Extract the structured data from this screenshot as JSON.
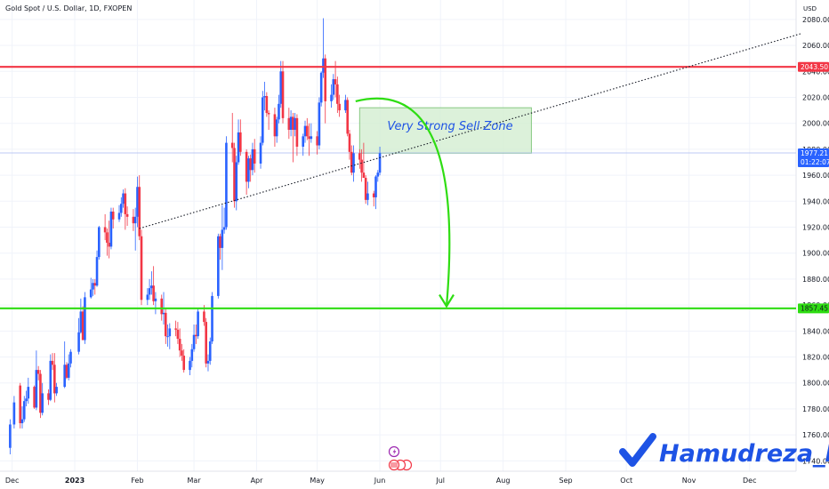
{
  "header": {
    "title": "Gold Spot / U.S. Dollar, 1D, FXOPEN",
    "currency": "USD"
  },
  "annotations": {
    "sell_zone_label": "Very Strong Sell Zone",
    "watermark": "Hamudreza_FX",
    "current_time_remaining": "01:22:07"
  },
  "colors": {
    "bull": "#2962ff",
    "bear": "#f23645",
    "resistance": "#f23645",
    "support": "#2edd12",
    "zone_fill": "#d6efd4",
    "zone_border": "#74c06e",
    "arrow": "#2edd12",
    "brand": "#1e53e5"
  },
  "chart_data": {
    "type": "candlestick",
    "symbol": "Gold Spot / U.S. Dollar",
    "interval": "1D",
    "y_axis": {
      "unit": "USD",
      "range": [
        1732,
        2095
      ],
      "ticks": [
        "2080.00",
        "2060.00",
        "2040.00",
        "2020.00",
        "2000.00",
        "1980.00",
        "1960.00",
        "1940.00",
        "1920.00",
        "1900.00",
        "1880.00",
        "1860.00",
        "1840.00",
        "1820.00",
        "1800.00",
        "1780.00",
        "1760.00",
        "1740.00"
      ]
    },
    "x_axis": {
      "ticks": [
        "Dec",
        "2023",
        "Feb",
        "Mar",
        "Apr",
        "May",
        "Jun",
        "Jul",
        "Aug",
        "Sep",
        "Oct",
        "Nov",
        "Dec"
      ]
    },
    "levels": [
      {
        "name": "resistance",
        "value": 2043.5,
        "label": "2043.50"
      },
      {
        "name": "support",
        "value": 1857.45,
        "label": "1857.45"
      },
      {
        "name": "last-price",
        "value": 1977.21,
        "label": "1977.21"
      }
    ],
    "sell_zone": {
      "low": 1977,
      "high": 2012,
      "start": "2023-05-22",
      "end": "2023-08-15"
    },
    "trendline": {
      "from": {
        "date": "2023-02-02",
        "price": 1919
      },
      "to": {
        "date": "2023-12-21",
        "price": 2069
      }
    },
    "projection": {
      "from": {
        "date": "2023-05-20",
        "price": 2017
      },
      "to": {
        "date": "2023-07-04",
        "price": 1857
      }
    },
    "candles": [
      {
        "d": "2022-11-30",
        "o": 1750,
        "h": 1772,
        "l": 1745,
        "c": 1768
      },
      {
        "d": "2022-12-02",
        "o": 1768,
        "h": 1790,
        "l": 1765,
        "c": 1785
      },
      {
        "d": "2022-12-05",
        "o": 1798,
        "h": 1800,
        "l": 1765,
        "c": 1769
      },
      {
        "d": "2022-12-06",
        "o": 1769,
        "h": 1782,
        "l": 1765,
        "c": 1772
      },
      {
        "d": "2022-12-07",
        "o": 1772,
        "h": 1790,
        "l": 1770,
        "c": 1786
      },
      {
        "d": "2022-12-08",
        "o": 1786,
        "h": 1794,
        "l": 1782,
        "c": 1788
      },
      {
        "d": "2022-12-09",
        "o": 1788,
        "h": 1804,
        "l": 1784,
        "c": 1797
      },
      {
        "d": "2022-12-12",
        "o": 1797,
        "h": 1798,
        "l": 1780,
        "c": 1781
      },
      {
        "d": "2022-12-13",
        "o": 1781,
        "h": 1825,
        "l": 1779,
        "c": 1810
      },
      {
        "d": "2022-12-14",
        "o": 1810,
        "h": 1813,
        "l": 1802,
        "c": 1807
      },
      {
        "d": "2022-12-15",
        "o": 1807,
        "h": 1810,
        "l": 1773,
        "c": 1777
      },
      {
        "d": "2022-12-16",
        "o": 1777,
        "h": 1800,
        "l": 1775,
        "c": 1792
      },
      {
        "d": "2022-12-19",
        "o": 1792,
        "h": 1795,
        "l": 1783,
        "c": 1787
      },
      {
        "d": "2022-12-20",
        "o": 1787,
        "h": 1822,
        "l": 1786,
        "c": 1817
      },
      {
        "d": "2022-12-21",
        "o": 1817,
        "h": 1823,
        "l": 1810,
        "c": 1814
      },
      {
        "d": "2022-12-22",
        "o": 1814,
        "h": 1823,
        "l": 1785,
        "c": 1792
      },
      {
        "d": "2022-12-23",
        "o": 1792,
        "h": 1800,
        "l": 1790,
        "c": 1797
      },
      {
        "d": "2022-12-27",
        "o": 1797,
        "h": 1832,
        "l": 1796,
        "c": 1814
      },
      {
        "d": "2022-12-28",
        "o": 1814,
        "h": 1816,
        "l": 1803,
        "c": 1804
      },
      {
        "d": "2022-12-29",
        "o": 1804,
        "h": 1822,
        "l": 1802,
        "c": 1815
      },
      {
        "d": "2022-12-30",
        "o": 1815,
        "h": 1826,
        "l": 1812,
        "c": 1824
      },
      {
        "d": "2023-01-03",
        "o": 1824,
        "h": 1850,
        "l": 1822,
        "c": 1839
      },
      {
        "d": "2023-01-04",
        "o": 1839,
        "h": 1865,
        "l": 1838,
        "c": 1855
      },
      {
        "d": "2023-01-05",
        "o": 1855,
        "h": 1859,
        "l": 1833,
        "c": 1833
      },
      {
        "d": "2023-01-06",
        "o": 1833,
        "h": 1870,
        "l": 1830,
        "c": 1866
      },
      {
        "d": "2023-01-09",
        "o": 1866,
        "h": 1881,
        "l": 1865,
        "c": 1872
      },
      {
        "d": "2023-01-10",
        "o": 1872,
        "h": 1880,
        "l": 1867,
        "c": 1877
      },
      {
        "d": "2023-01-11",
        "o": 1877,
        "h": 1880,
        "l": 1868,
        "c": 1875
      },
      {
        "d": "2023-01-12",
        "o": 1875,
        "h": 1902,
        "l": 1874,
        "c": 1897
      },
      {
        "d": "2023-01-13",
        "o": 1897,
        "h": 1921,
        "l": 1895,
        "c": 1920
      },
      {
        "d": "2023-01-16",
        "o": 1920,
        "h": 1930,
        "l": 1910,
        "c": 1916
      },
      {
        "d": "2023-01-17",
        "o": 1916,
        "h": 1919,
        "l": 1898,
        "c": 1908
      },
      {
        "d": "2023-01-18",
        "o": 1908,
        "h": 1925,
        "l": 1896,
        "c": 1905
      },
      {
        "d": "2023-01-19",
        "o": 1905,
        "h": 1935,
        "l": 1903,
        "c": 1932
      },
      {
        "d": "2023-01-20",
        "o": 1932,
        "h": 1935,
        "l": 1919,
        "c": 1926
      },
      {
        "d": "2023-01-23",
        "o": 1926,
        "h": 1937,
        "l": 1924,
        "c": 1931
      },
      {
        "d": "2023-01-24",
        "o": 1931,
        "h": 1943,
        "l": 1928,
        "c": 1938
      },
      {
        "d": "2023-01-25",
        "o": 1938,
        "h": 1949,
        "l": 1935,
        "c": 1946
      },
      {
        "d": "2023-01-26",
        "o": 1946,
        "h": 1950,
        "l": 1918,
        "c": 1930
      },
      {
        "d": "2023-01-27",
        "o": 1930,
        "h": 1936,
        "l": 1921,
        "c": 1928
      },
      {
        "d": "2023-01-30",
        "o": 1928,
        "h": 1934,
        "l": 1917,
        "c": 1923
      },
      {
        "d": "2023-01-31",
        "o": 1923,
        "h": 1935,
        "l": 1902,
        "c": 1928
      },
      {
        "d": "2023-02-01",
        "o": 1928,
        "h": 1959,
        "l": 1920,
        "c": 1951
      },
      {
        "d": "2023-02-02",
        "o": 1951,
        "h": 1960,
        "l": 1910,
        "c": 1913
      },
      {
        "d": "2023-02-03",
        "o": 1913,
        "h": 1918,
        "l": 1860,
        "c": 1864
      },
      {
        "d": "2023-02-06",
        "o": 1864,
        "h": 1873,
        "l": 1860,
        "c": 1868
      },
      {
        "d": "2023-02-07",
        "o": 1868,
        "h": 1880,
        "l": 1864,
        "c": 1873
      },
      {
        "d": "2023-02-08",
        "o": 1873,
        "h": 1886,
        "l": 1868,
        "c": 1875
      },
      {
        "d": "2023-02-09",
        "o": 1875,
        "h": 1890,
        "l": 1860,
        "c": 1863
      },
      {
        "d": "2023-02-10",
        "o": 1863,
        "h": 1870,
        "l": 1853,
        "c": 1865
      },
      {
        "d": "2023-02-13",
        "o": 1865,
        "h": 1868,
        "l": 1848,
        "c": 1853
      },
      {
        "d": "2023-02-14",
        "o": 1853,
        "h": 1870,
        "l": 1845,
        "c": 1854
      },
      {
        "d": "2023-02-15",
        "o": 1854,
        "h": 1858,
        "l": 1830,
        "c": 1836
      },
      {
        "d": "2023-02-16",
        "o": 1836,
        "h": 1845,
        "l": 1828,
        "c": 1836
      },
      {
        "d": "2023-02-17",
        "o": 1836,
        "h": 1846,
        "l": 1826,
        "c": 1842
      },
      {
        "d": "2023-02-20",
        "o": 1842,
        "h": 1848,
        "l": 1836,
        "c": 1841
      },
      {
        "d": "2023-02-21",
        "o": 1841,
        "h": 1847,
        "l": 1830,
        "c": 1834
      },
      {
        "d": "2023-02-22",
        "o": 1834,
        "h": 1842,
        "l": 1820,
        "c": 1825
      },
      {
        "d": "2023-02-23",
        "o": 1825,
        "h": 1830,
        "l": 1817,
        "c": 1821
      },
      {
        "d": "2023-02-24",
        "o": 1821,
        "h": 1826,
        "l": 1808,
        "c": 1810
      },
      {
        "d": "2023-02-27",
        "o": 1810,
        "h": 1820,
        "l": 1806,
        "c": 1817
      },
      {
        "d": "2023-02-28",
        "o": 1817,
        "h": 1830,
        "l": 1812,
        "c": 1826
      },
      {
        "d": "2023-03-01",
        "o": 1826,
        "h": 1845,
        "l": 1824,
        "c": 1837
      },
      {
        "d": "2023-03-02",
        "o": 1837,
        "h": 1845,
        "l": 1830,
        "c": 1836
      },
      {
        "d": "2023-03-03",
        "o": 1836,
        "h": 1858,
        "l": 1834,
        "c": 1855
      },
      {
        "d": "2023-03-06",
        "o": 1855,
        "h": 1860,
        "l": 1844,
        "c": 1847
      },
      {
        "d": "2023-03-07",
        "o": 1847,
        "h": 1850,
        "l": 1812,
        "c": 1815
      },
      {
        "d": "2023-03-08",
        "o": 1815,
        "h": 1822,
        "l": 1809,
        "c": 1817
      },
      {
        "d": "2023-03-09",
        "o": 1817,
        "h": 1835,
        "l": 1814,
        "c": 1832
      },
      {
        "d": "2023-03-10",
        "o": 1832,
        "h": 1870,
        "l": 1830,
        "c": 1867
      },
      {
        "d": "2023-03-13",
        "o": 1867,
        "h": 1915,
        "l": 1865,
        "c": 1913
      },
      {
        "d": "2023-03-14",
        "o": 1913,
        "h": 1915,
        "l": 1895,
        "c": 1904
      },
      {
        "d": "2023-03-15",
        "o": 1904,
        "h": 1937,
        "l": 1887,
        "c": 1918
      },
      {
        "d": "2023-03-16",
        "o": 1918,
        "h": 1935,
        "l": 1915,
        "c": 1920
      },
      {
        "d": "2023-03-17",
        "o": 1920,
        "h": 1990,
        "l": 1918,
        "c": 1985
      },
      {
        "d": "2023-03-20",
        "o": 1985,
        "h": 2008,
        "l": 1970,
        "c": 1981
      },
      {
        "d": "2023-03-21",
        "o": 1981,
        "h": 1985,
        "l": 1935,
        "c": 1940
      },
      {
        "d": "2023-03-22",
        "o": 1940,
        "h": 1975,
        "l": 1933,
        "c": 1970
      },
      {
        "d": "2023-03-23",
        "o": 1970,
        "h": 2003,
        "l": 1968,
        "c": 1993
      },
      {
        "d": "2023-03-24",
        "o": 1993,
        "h": 2003,
        "l": 1975,
        "c": 1978
      },
      {
        "d": "2023-03-27",
        "o": 1978,
        "h": 1980,
        "l": 1945,
        "c": 1955
      },
      {
        "d": "2023-03-28",
        "o": 1955,
        "h": 1975,
        "l": 1950,
        "c": 1973
      },
      {
        "d": "2023-03-29",
        "o": 1973,
        "h": 1976,
        "l": 1955,
        "c": 1964
      },
      {
        "d": "2023-03-30",
        "o": 1964,
        "h": 1985,
        "l": 1960,
        "c": 1980
      },
      {
        "d": "2023-03-31",
        "o": 1980,
        "h": 1988,
        "l": 1962,
        "c": 1969
      },
      {
        "d": "2023-04-03",
        "o": 1969,
        "h": 1990,
        "l": 1965,
        "c": 1985
      },
      {
        "d": "2023-04-04",
        "o": 1985,
        "h": 2025,
        "l": 1983,
        "c": 2020
      },
      {
        "d": "2023-04-05",
        "o": 2020,
        "h": 2032,
        "l": 2010,
        "c": 2021
      },
      {
        "d": "2023-04-06",
        "o": 2021,
        "h": 2024,
        "l": 2005,
        "c": 2008
      },
      {
        "d": "2023-04-07",
        "o": 2008,
        "h": 2010,
        "l": 1995,
        "c": 2007
      },
      {
        "d": "2023-04-10",
        "o": 2007,
        "h": 2012,
        "l": 1982,
        "c": 1990
      },
      {
        "d": "2023-04-11",
        "o": 1990,
        "h": 2005,
        "l": 1985,
        "c": 2003
      },
      {
        "d": "2023-04-12",
        "o": 2003,
        "h": 2022,
        "l": 2000,
        "c": 2015
      },
      {
        "d": "2023-04-13",
        "o": 2015,
        "h": 2048,
        "l": 2012,
        "c": 2040
      },
      {
        "d": "2023-04-14",
        "o": 2040,
        "h": 2048,
        "l": 2000,
        "c": 2004
      },
      {
        "d": "2023-04-17",
        "o": 2004,
        "h": 2012,
        "l": 1988,
        "c": 1995
      },
      {
        "d": "2023-04-18",
        "o": 1995,
        "h": 2010,
        "l": 1990,
        "c": 2005
      },
      {
        "d": "2023-04-19",
        "o": 2005,
        "h": 2008,
        "l": 1970,
        "c": 1995
      },
      {
        "d": "2023-04-20",
        "o": 1995,
        "h": 2008,
        "l": 1990,
        "c": 2004
      },
      {
        "d": "2023-04-21",
        "o": 2004,
        "h": 2007,
        "l": 1975,
        "c": 1982
      },
      {
        "d": "2023-04-24",
        "o": 1982,
        "h": 1992,
        "l": 1975,
        "c": 1990
      },
      {
        "d": "2023-04-25",
        "o": 1990,
        "h": 2002,
        "l": 1985,
        "c": 1998
      },
      {
        "d": "2023-04-26",
        "o": 1998,
        "h": 2004,
        "l": 1987,
        "c": 1990
      },
      {
        "d": "2023-04-27",
        "o": 1990,
        "h": 2000,
        "l": 1975,
        "c": 1988
      },
      {
        "d": "2023-04-28",
        "o": 1988,
        "h": 2000,
        "l": 1985,
        "c": 1990
      },
      {
        "d": "2023-05-01",
        "o": 1990,
        "h": 1994,
        "l": 1976,
        "c": 1983
      },
      {
        "d": "2023-05-02",
        "o": 1983,
        "h": 2020,
        "l": 1980,
        "c": 2016
      },
      {
        "d": "2023-05-03",
        "o": 2016,
        "h": 2040,
        "l": 2013,
        "c": 2039
      },
      {
        "d": "2023-05-04",
        "o": 2039,
        "h": 2081,
        "l": 2035,
        "c": 2050
      },
      {
        "d": "2023-05-05",
        "o": 2050,
        "h": 2053,
        "l": 2000,
        "c": 2017
      },
      {
        "d": "2023-05-08",
        "o": 2017,
        "h": 2030,
        "l": 2012,
        "c": 2022
      },
      {
        "d": "2023-05-09",
        "o": 2022,
        "h": 2038,
        "l": 2018,
        "c": 2034
      },
      {
        "d": "2023-05-10",
        "o": 2034,
        "h": 2048,
        "l": 2020,
        "c": 2030
      },
      {
        "d": "2023-05-11",
        "o": 2030,
        "h": 2036,
        "l": 2008,
        "c": 2015
      },
      {
        "d": "2023-05-12",
        "o": 2015,
        "h": 2022,
        "l": 2005,
        "c": 2010
      },
      {
        "d": "2023-05-15",
        "o": 2010,
        "h": 2022,
        "l": 2008,
        "c": 2018
      },
      {
        "d": "2023-05-16",
        "o": 2018,
        "h": 2020,
        "l": 1990,
        "c": 1992
      },
      {
        "d": "2023-05-17",
        "o": 1992,
        "h": 1995,
        "l": 1972,
        "c": 1978
      },
      {
        "d": "2023-05-18",
        "o": 1978,
        "h": 1983,
        "l": 1960,
        "c": 1962
      },
      {
        "d": "2023-05-19",
        "o": 1962,
        "h": 1983,
        "l": 1955,
        "c": 1977
      },
      {
        "d": "2023-05-22",
        "o": 1977,
        "h": 1980,
        "l": 1965,
        "c": 1972
      },
      {
        "d": "2023-05-23",
        "o": 1972,
        "h": 1980,
        "l": 1955,
        "c": 1962
      },
      {
        "d": "2023-05-24",
        "o": 1962,
        "h": 1985,
        "l": 1958,
        "c": 1958
      },
      {
        "d": "2023-05-25",
        "o": 1958,
        "h": 1960,
        "l": 1938,
        "c": 1941
      },
      {
        "d": "2023-05-26",
        "o": 1941,
        "h": 1955,
        "l": 1937,
        "c": 1946
      },
      {
        "d": "2023-05-29",
        "o": 1946,
        "h": 1948,
        "l": 1936,
        "c": 1943
      },
      {
        "d": "2023-05-30",
        "o": 1943,
        "h": 1960,
        "l": 1934,
        "c": 1959
      },
      {
        "d": "2023-05-31",
        "o": 1959,
        "h": 1964,
        "l": 1955,
        "c": 1962
      },
      {
        "d": "2023-06-01",
        "o": 1962,
        "h": 1982,
        "l": 1960,
        "c": 1977
      }
    ]
  }
}
